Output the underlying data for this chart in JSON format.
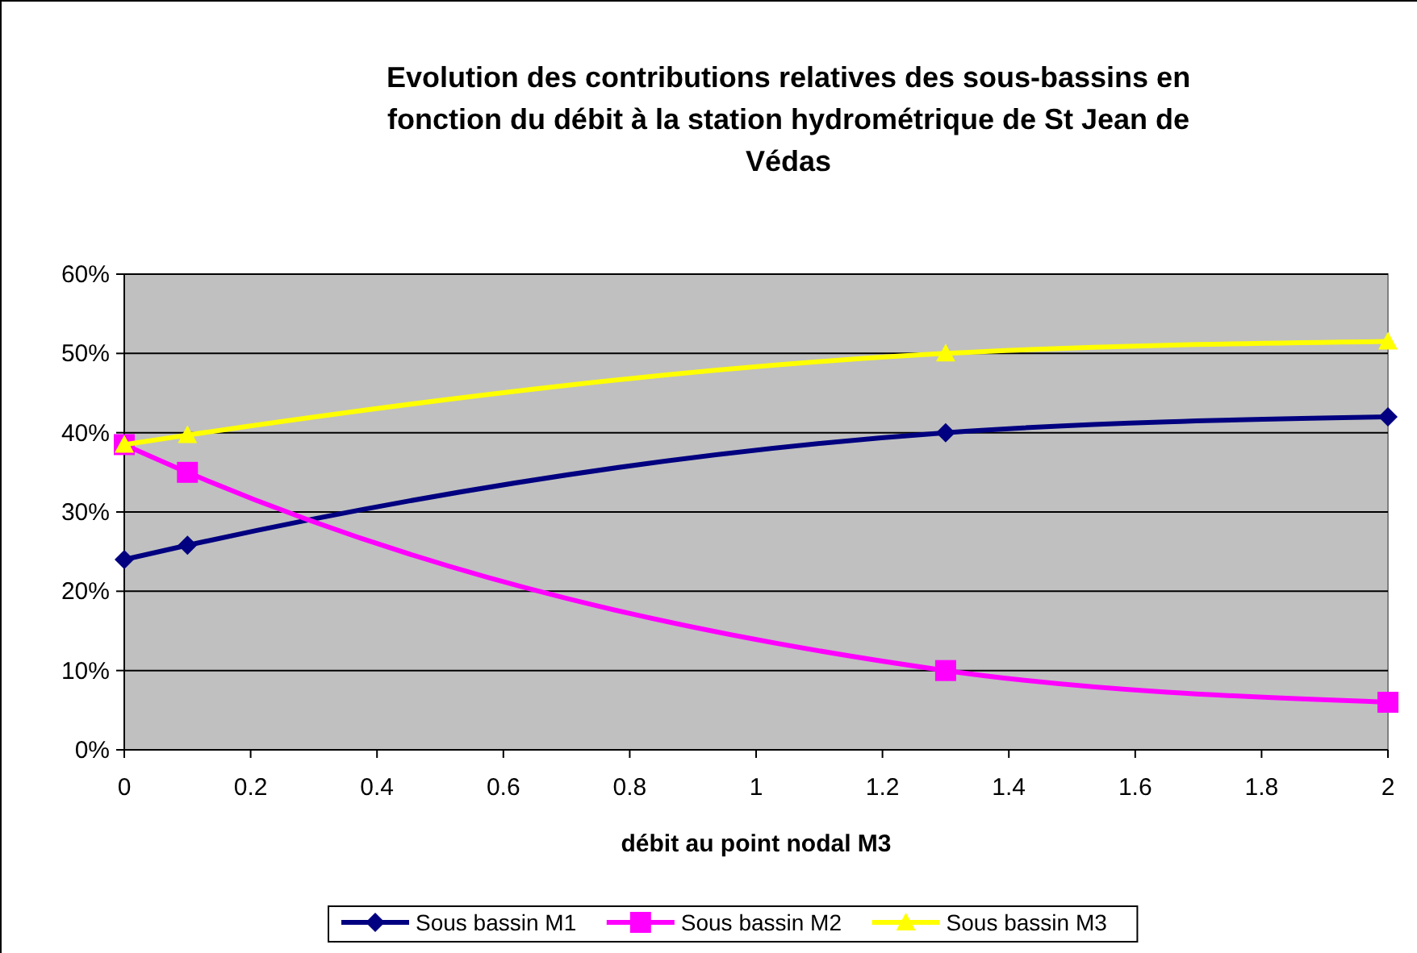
{
  "chart_data": {
    "type": "line",
    "title": "Evolution des contributions relatives des sous-bassins en fonction du débit à la station hydrométrique de St Jean de Védas",
    "xlabel": "débit au point nodal M3",
    "x": [
      0,
      0.1,
      1.3,
      2
    ],
    "series": [
      {
        "name": "Sous bassin M1",
        "color": "#000080",
        "marker": "diamond",
        "values": [
          0.24,
          0.258,
          0.4,
          0.42
        ]
      },
      {
        "name": "Sous bassin M2",
        "color": "#ff00ff",
        "marker": "square",
        "values": [
          0.385,
          0.35,
          0.1,
          0.06
        ]
      },
      {
        "name": "Sous bassin M3",
        "color": "#ffff00",
        "marker": "triangle",
        "values": [
          0.385,
          0.397,
          0.5,
          0.515
        ]
      }
    ],
    "xlim": [
      0,
      2
    ],
    "xticks": [
      0,
      0.2,
      0.4,
      0.6,
      0.8,
      1,
      1.2,
      1.4,
      1.6,
      1.8,
      2
    ],
    "ylim": [
      0,
      0.6
    ],
    "yticks": [
      {
        "value": 0,
        "label": "0%"
      },
      {
        "value": 0.1,
        "label": "10%"
      },
      {
        "value": 0.2,
        "label": "20%"
      },
      {
        "value": 0.3,
        "label": "30%"
      },
      {
        "value": 0.4,
        "label": "40%"
      },
      {
        "value": 0.5,
        "label": "50%"
      },
      {
        "value": 0.6,
        "label": "60%"
      }
    ],
    "grid": "y",
    "legend": "bottom",
    "line_style": "solid"
  }
}
